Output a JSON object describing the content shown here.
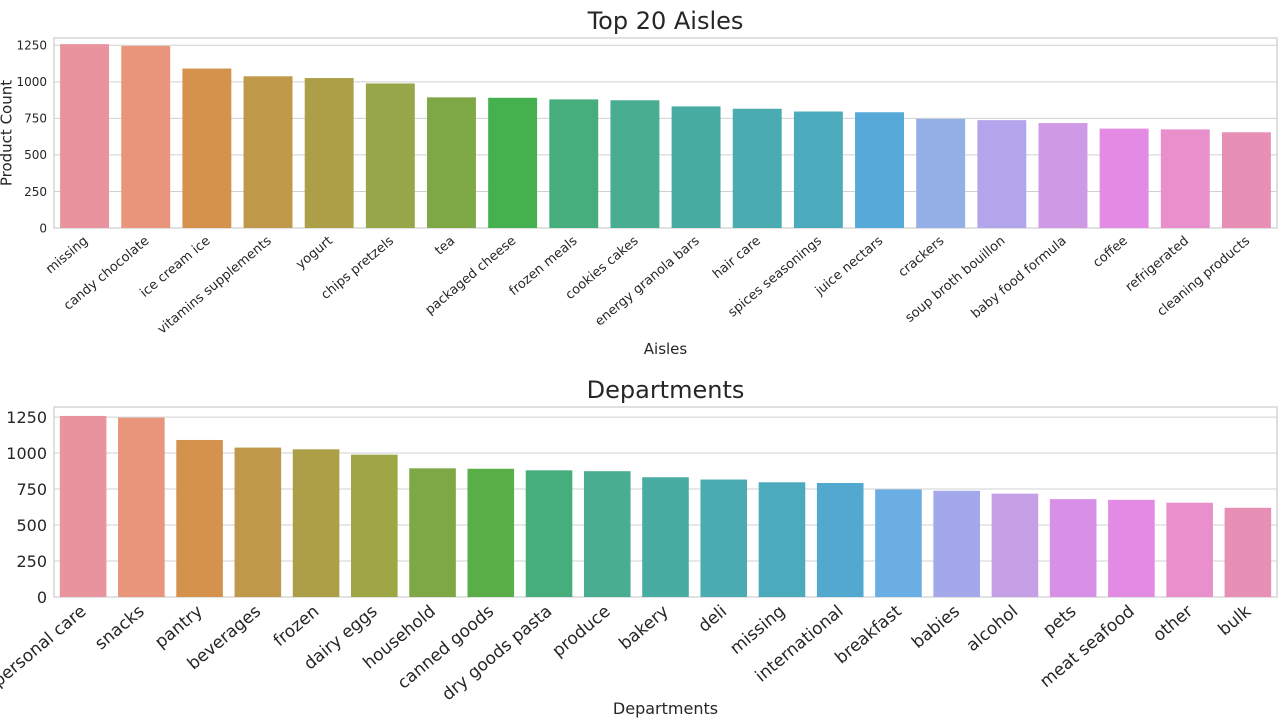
{
  "chart_data": [
    {
      "type": "bar",
      "title": "Top 20 Aisles",
      "xlabel": "Aisles",
      "ylabel": "Product Count",
      "ylim": [
        0,
        1300
      ],
      "yticks": [
        0,
        250,
        500,
        750,
        1000,
        1250
      ],
      "grid": true,
      "categories": [
        "missing",
        "candy chocolate",
        "ice cream ice",
        "vitamins supplements",
        "yogurt",
        "chips pretzels",
        "tea",
        "packaged cheese",
        "frozen meals",
        "cookies cakes",
        "energy granola bars",
        "hair care",
        "spices seasonings",
        "juice nectars",
        "crackers",
        "soup broth bouillon",
        "baby food formula",
        "coffee",
        "refrigerated",
        "cleaning products"
      ],
      "values": [
        1258,
        1246,
        1091,
        1038,
        1026,
        989,
        894,
        891,
        880,
        874,
        832,
        816,
        797,
        792,
        747,
        738,
        718,
        680,
        675,
        655
      ],
      "colors": [
        "#e8939d",
        "#e8957c",
        "#d4924c",
        "#c0984a",
        "#ad9e48",
        "#97a648",
        "#7ea846",
        "#45b04e",
        "#46ae7c",
        "#48ad91",
        "#49aca3",
        "#4aabb1",
        "#4caabd",
        "#56a9d9",
        "#94aee6",
        "#b3a5ec",
        "#cf99e6",
        "#e38ae4",
        "#e98fcc",
        "#e88fb5"
      ]
    },
    {
      "type": "bar",
      "title": "Departments",
      "xlabel": "Departments",
      "ylabel": "",
      "ylim": [
        0,
        1320
      ],
      "yticks": [
        0,
        250,
        500,
        750,
        1000,
        1250
      ],
      "grid": true,
      "categories": [
        "personal care",
        "snacks",
        "pantry",
        "beverages",
        "frozen",
        "dairy eggs",
        "household",
        "canned goods",
        "dry goods pasta",
        "produce",
        "bakery",
        "deli",
        "missing",
        "international",
        "breakfast",
        "babies",
        "alcohol",
        "pets",
        "meat seafood",
        "other",
        "bulk"
      ],
      "values": [
        1258,
        1246,
        1091,
        1038,
        1026,
        989,
        894,
        891,
        880,
        874,
        832,
        816,
        797,
        792,
        747,
        738,
        718,
        680,
        675,
        655,
        620
      ],
      "colors": [
        "#e8939d",
        "#e8957c",
        "#d4924c",
        "#c0984a",
        "#ad9e48",
        "#9ea646",
        "#7ea846",
        "#5aae48",
        "#46ae7c",
        "#48ad91",
        "#49aca3",
        "#4aabb1",
        "#4caabd",
        "#52a8cf",
        "#6aaee4",
        "#a3a8ea",
        "#c6a0e6",
        "#d890e6",
        "#e38ae4",
        "#e98fcc",
        "#e88fb5"
      ]
    }
  ]
}
